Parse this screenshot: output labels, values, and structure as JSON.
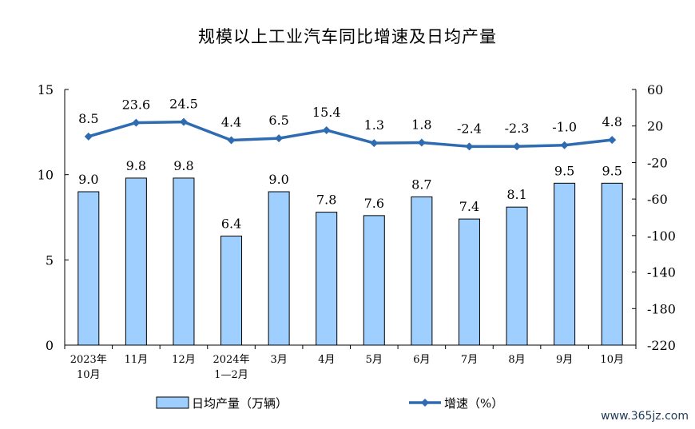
{
  "chart_data": {
    "type": "bar",
    "title": "规模以上工业汽车同比增速及日均产量",
    "categories": [
      [
        "2023年",
        "10月"
      ],
      [
        "11月"
      ],
      [
        "12月"
      ],
      [
        "2024年",
        "1—2月"
      ],
      [
        "3月"
      ],
      [
        "4月"
      ],
      [
        "5月"
      ],
      [
        "6月"
      ],
      [
        "7月"
      ],
      [
        "8月"
      ],
      [
        "9月"
      ],
      [
        "10月"
      ]
    ],
    "series": [
      {
        "name": "日均产量（万辆）",
        "type": "bar",
        "axis": "left",
        "color": "#9ecfff",
        "values": [
          9.0,
          9.8,
          9.8,
          6.4,
          9.0,
          7.8,
          7.6,
          8.7,
          7.4,
          8.1,
          9.5,
          9.5
        ],
        "labels": [
          "9.0",
          "9.8",
          "9.8",
          "6.4",
          "9.0",
          "7.8",
          "7.6",
          "8.7",
          "7.4",
          "8.1",
          "9.5",
          "9.5"
        ]
      },
      {
        "name": "增速（%）",
        "type": "line",
        "axis": "right",
        "color": "#2e6bb0",
        "values": [
          8.5,
          23.6,
          24.5,
          4.4,
          6.5,
          15.4,
          1.3,
          1.8,
          -2.4,
          -2.3,
          -1.0,
          4.8
        ],
        "labels": [
          "8.5",
          "23.6",
          "24.5",
          "4.4",
          "6.5",
          "15.4",
          "1.3",
          "1.8",
          "-2.4",
          "-2.3",
          "-1.0",
          "4.8"
        ]
      }
    ],
    "y_left": {
      "ylim": [
        0,
        15
      ],
      "ticks": [
        "0",
        "5",
        "10",
        "15"
      ]
    },
    "y_right": {
      "ylim": [
        -220,
        60
      ],
      "ticks": [
        "-220",
        "-180",
        "-140",
        "-100",
        "-60",
        "-20",
        "20",
        "60"
      ]
    },
    "grid": false,
    "legend_position": "bottom"
  },
  "watermark": "www.365jz.com"
}
